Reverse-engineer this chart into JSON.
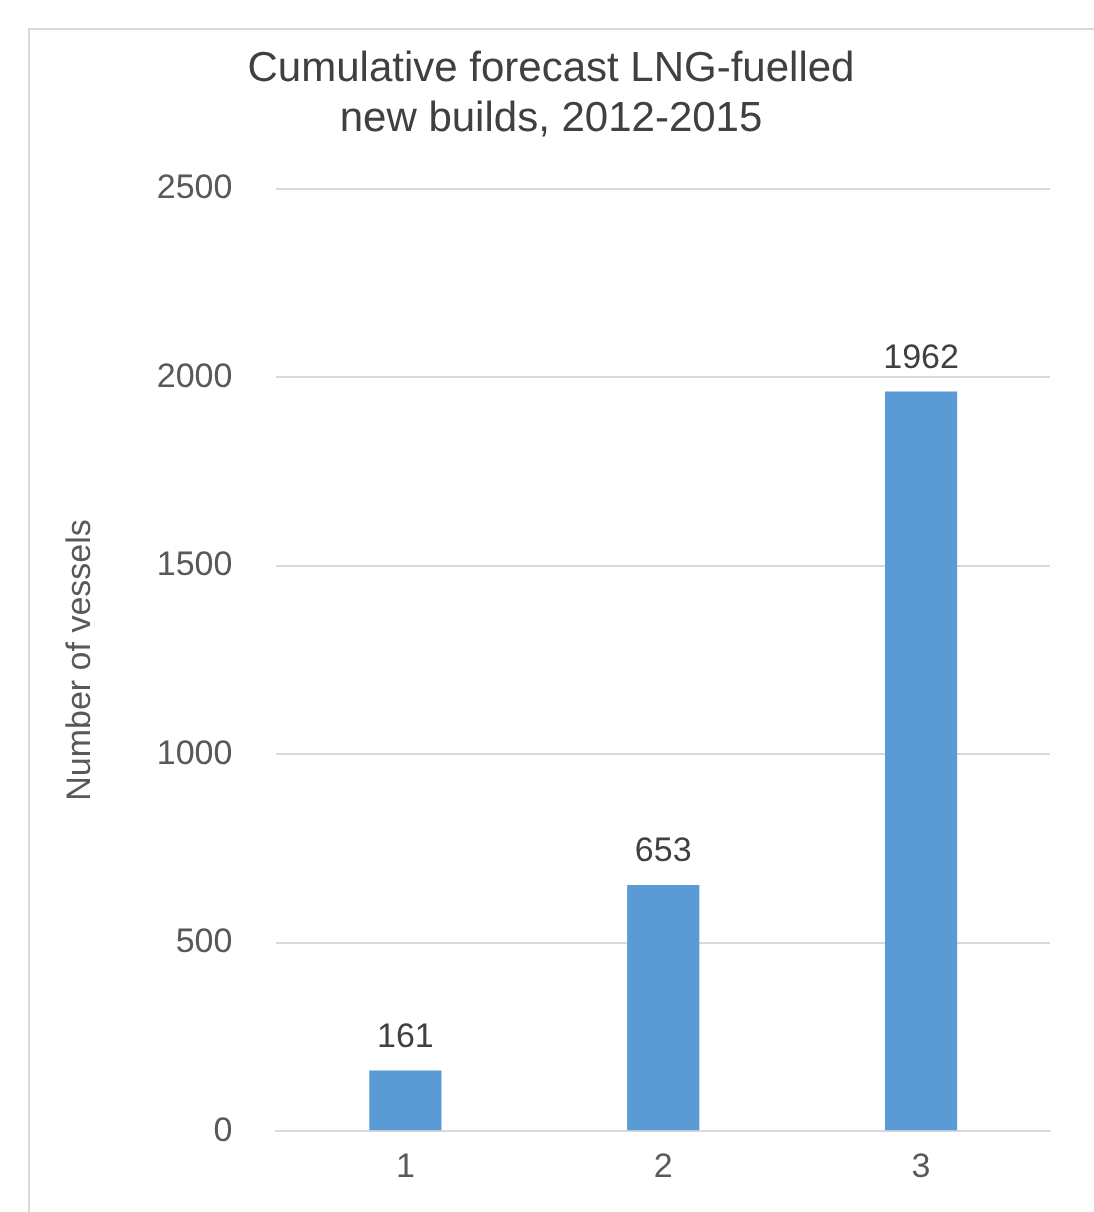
{
  "chart_data": {
    "type": "bar",
    "title": "Cumulative forecast LNG-fuelled new builds, 2012-2015",
    "ylabel": "Number of vessels",
    "categories": [
      "1",
      "2",
      "3"
    ],
    "values": [
      161,
      653,
      1962
    ],
    "color": "#5b9bd5",
    "ylim": [
      0,
      2500
    ],
    "yticks": [
      0,
      500,
      1000,
      1500,
      2000,
      2500
    ],
    "grid": "y",
    "data_labels": true,
    "legend": false
  }
}
